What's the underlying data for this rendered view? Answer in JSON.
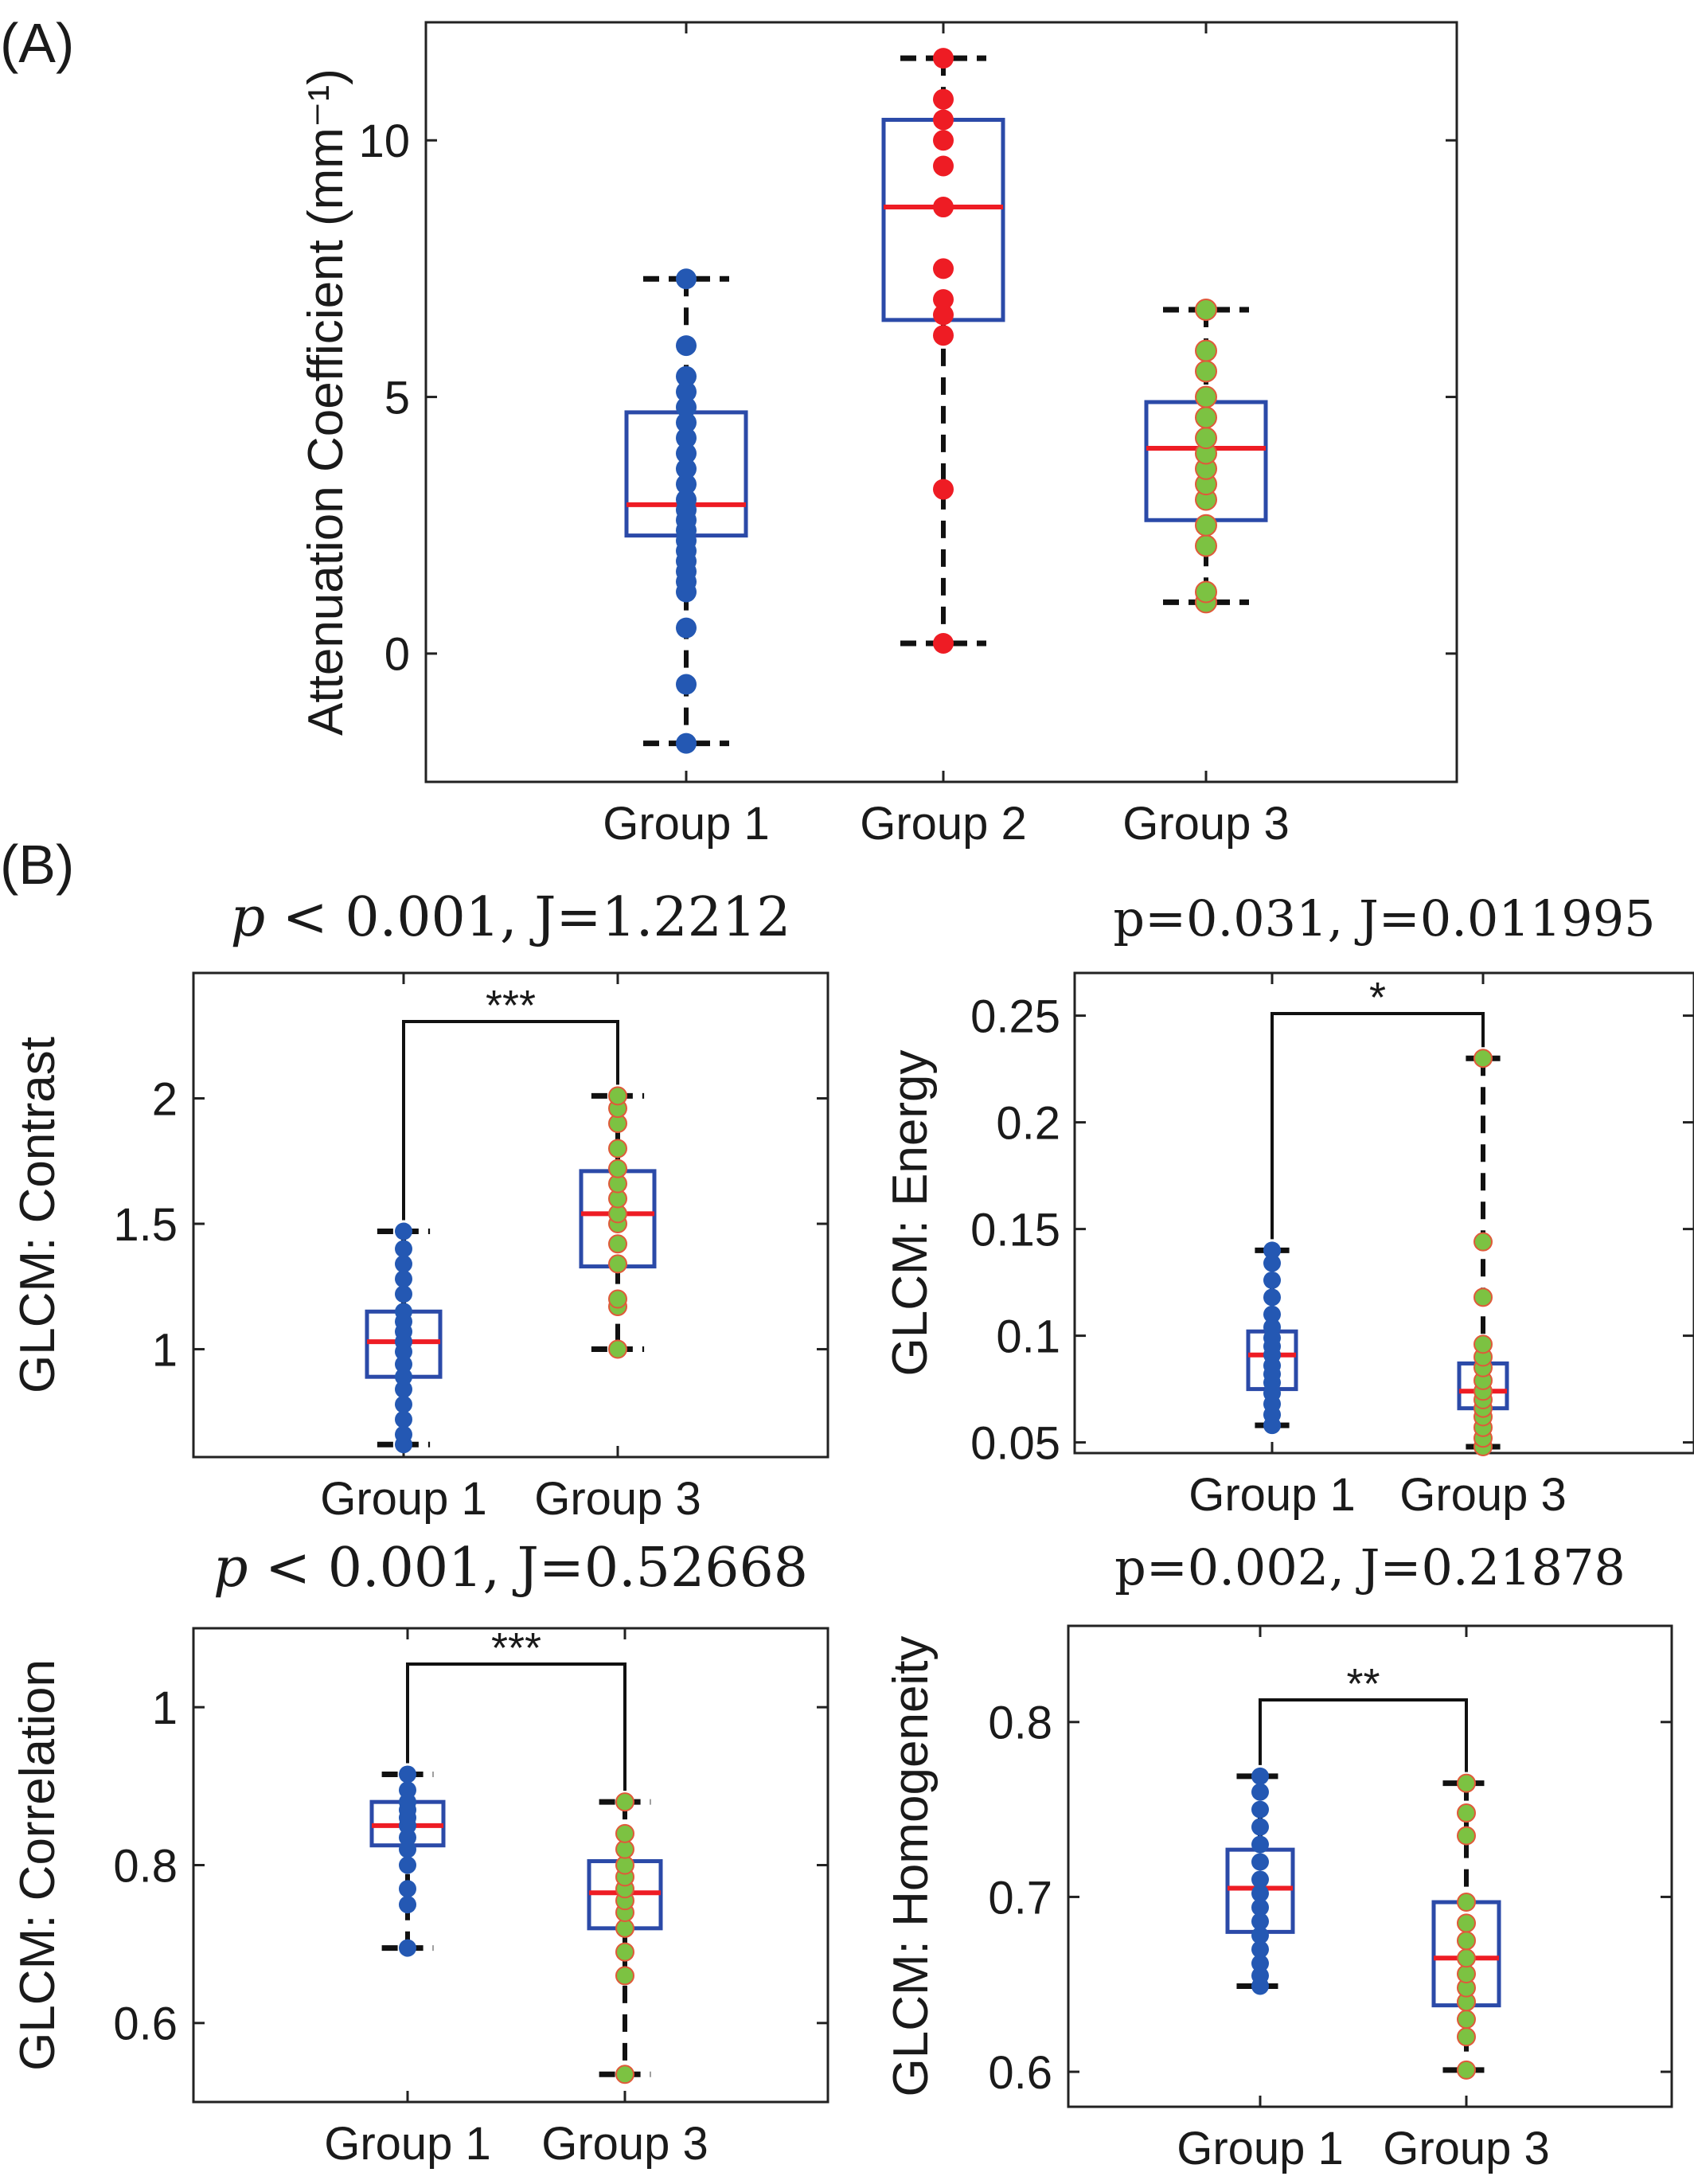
{
  "panel_labels": {
    "a": "(A)",
    "b": "(B)"
  },
  "colors": {
    "box": "#2b4aa8",
    "median": "#ee1c24",
    "group1": "#2458b3",
    "group2": "#ee1c24",
    "group3_fill": "#7cc242",
    "group3_edge": "#e0593a",
    "whisker": "#111111",
    "axis": "#222222"
  },
  "chart_data": [
    {
      "id": "A",
      "type": "box",
      "title": "",
      "xlabel": "",
      "ylabel": "Attenuation Coefficient (mm⁻¹)",
      "ylim": [
        -2.5,
        12.3
      ],
      "yticks": [
        0,
        5,
        10
      ],
      "ytick_labels": [
        "0",
        "5",
        "10"
      ],
      "categories": [
        "Group 1",
        "Group 2",
        "Group 3"
      ],
      "boxes": [
        {
          "group": "Group 1",
          "q1": 2.3,
          "median": 2.9,
          "q3": 4.7,
          "whisker_low": -1.75,
          "whisker_high": 7.3,
          "points": [
            -1.75,
            -0.6,
            0.5,
            1.2,
            1.4,
            1.6,
            1.8,
            2.0,
            2.2,
            2.4,
            2.6,
            2.8,
            3.0,
            3.3,
            3.6,
            3.9,
            4.2,
            4.5,
            4.8,
            5.1,
            5.4,
            6.0,
            7.3
          ]
        },
        {
          "group": "Group 2",
          "q1": 6.5,
          "median": 8.7,
          "q3": 10.4,
          "whisker_low": 0.2,
          "whisker_high": 11.6,
          "points": [
            0.2,
            3.2,
            6.2,
            6.6,
            6.9,
            7.5,
            8.7,
            9.5,
            10.0,
            10.4,
            10.8,
            11.6
          ]
        },
        {
          "group": "Group 3",
          "q1": 2.6,
          "median": 4.0,
          "q3": 4.9,
          "whisker_low": 1.0,
          "whisker_high": 6.7,
          "points": [
            1.0,
            1.2,
            2.1,
            2.5,
            3.0,
            3.3,
            3.6,
            3.9,
            4.2,
            4.6,
            5.0,
            5.5,
            5.9,
            6.7
          ]
        }
      ]
    },
    {
      "id": "B1",
      "type": "box",
      "title": "p < 0.001, J=1.2212",
      "title_parts": {
        "p": "p",
        "rest": " < 0.001, J=1.2212"
      },
      "xlabel": "",
      "ylabel": "GLCM: Contrast",
      "ylim": [
        0.57,
        2.5
      ],
      "yticks": [
        1,
        1.5,
        2
      ],
      "ytick_labels": [
        "1",
        "1.5",
        "2"
      ],
      "categories": [
        "Group 1",
        "Group 3"
      ],
      "significance": "***",
      "boxes": [
        {
          "group": "Group 1",
          "q1": 0.89,
          "median": 1.03,
          "q3": 1.15,
          "whisker_low": 0.62,
          "whisker_high": 1.47,
          "points": [
            0.62,
            0.66,
            0.72,
            0.78,
            0.84,
            0.89,
            0.94,
            0.99,
            1.03,
            1.07,
            1.11,
            1.15,
            1.22,
            1.28,
            1.34,
            1.4,
            1.47
          ]
        },
        {
          "group": "Group 3",
          "q1": 1.33,
          "median": 1.54,
          "q3": 1.71,
          "whisker_low": 1.0,
          "whisker_high": 2.01,
          "points": [
            1.0,
            1.17,
            1.2,
            1.34,
            1.42,
            1.5,
            1.54,
            1.6,
            1.66,
            1.72,
            1.8,
            1.9,
            1.96,
            2.01
          ]
        }
      ]
    },
    {
      "id": "B2",
      "type": "box",
      "title": "p=0.031, J=0.011995",
      "xlabel": "",
      "ylabel": "GLCM: Energy",
      "ylim": [
        0.045,
        0.27
      ],
      "yticks": [
        0.05,
        0.1,
        0.15,
        0.2,
        0.25
      ],
      "ytick_labels": [
        "0.05",
        "0.1",
        "0.15",
        "0.2",
        "0.25"
      ],
      "categories": [
        "Group 1",
        "Group 3"
      ],
      "significance": "*",
      "boxes": [
        {
          "group": "Group 1",
          "q1": 0.075,
          "median": 0.091,
          "q3": 0.102,
          "whisker_low": 0.058,
          "whisker_high": 0.14,
          "points": [
            0.058,
            0.063,
            0.068,
            0.073,
            0.078,
            0.082,
            0.086,
            0.091,
            0.095,
            0.099,
            0.104,
            0.11,
            0.118,
            0.126,
            0.134,
            0.14
          ]
        },
        {
          "group": "Group 3",
          "q1": 0.066,
          "median": 0.074,
          "q3": 0.087,
          "whisker_low": 0.048,
          "whisker_high": 0.23,
          "points": [
            0.048,
            0.052,
            0.057,
            0.062,
            0.066,
            0.07,
            0.074,
            0.079,
            0.085,
            0.09,
            0.096,
            0.118,
            0.144,
            0.23
          ]
        }
      ]
    },
    {
      "id": "B3",
      "type": "box",
      "title": "p < 0.001, J=0.52668",
      "title_parts": {
        "p": "p",
        "rest": " < 0.001, J=0.52668"
      },
      "xlabel": "",
      "ylabel": "GLCM: Correlation",
      "ylim": [
        0.5,
        1.1
      ],
      "yticks": [
        0.6,
        0.8,
        1
      ],
      "ytick_labels": [
        "0.6",
        "0.8",
        "1"
      ],
      "categories": [
        "Group 1",
        "Group 3"
      ],
      "significance": "***",
      "boxes": [
        {
          "group": "Group 1",
          "q1": 0.825,
          "median": 0.85,
          "q3": 0.88,
          "whisker_low": 0.695,
          "whisker_high": 0.915,
          "points": [
            0.695,
            0.75,
            0.77,
            0.8,
            0.82,
            0.835,
            0.85,
            0.86,
            0.87,
            0.88,
            0.895,
            0.915
          ]
        },
        {
          "group": "Group 3",
          "q1": 0.72,
          "median": 0.765,
          "q3": 0.805,
          "whisker_low": 0.535,
          "whisker_high": 0.88,
          "points": [
            0.535,
            0.66,
            0.69,
            0.72,
            0.74,
            0.755,
            0.77,
            0.785,
            0.8,
            0.82,
            0.84,
            0.88
          ]
        }
      ]
    },
    {
      "id": "B4",
      "type": "box",
      "title": "p=0.002, J=0.21878",
      "xlabel": "",
      "ylabel": "GLCM: Homogeneity",
      "ylim": [
        0.58,
        0.855
      ],
      "yticks": [
        0.6,
        0.7,
        0.8
      ],
      "ytick_labels": [
        "0.6",
        "0.7",
        "0.8"
      ],
      "categories": [
        "Group 1",
        "Group 3"
      ],
      "significance": "**",
      "boxes": [
        {
          "group": "Group 1",
          "q1": 0.68,
          "median": 0.705,
          "q3": 0.727,
          "whisker_low": 0.649,
          "whisker_high": 0.769,
          "points": [
            0.649,
            0.655,
            0.662,
            0.67,
            0.678,
            0.686,
            0.694,
            0.702,
            0.71,
            0.72,
            0.73,
            0.74,
            0.75,
            0.76,
            0.769
          ]
        },
        {
          "group": "Group 3",
          "q1": 0.638,
          "median": 0.665,
          "q3": 0.697,
          "whisker_low": 0.601,
          "whisker_high": 0.765,
          "points": [
            0.601,
            0.62,
            0.63,
            0.64,
            0.648,
            0.656,
            0.665,
            0.675,
            0.685,
            0.697,
            0.735,
            0.748,
            0.765
          ]
        }
      ]
    }
  ]
}
